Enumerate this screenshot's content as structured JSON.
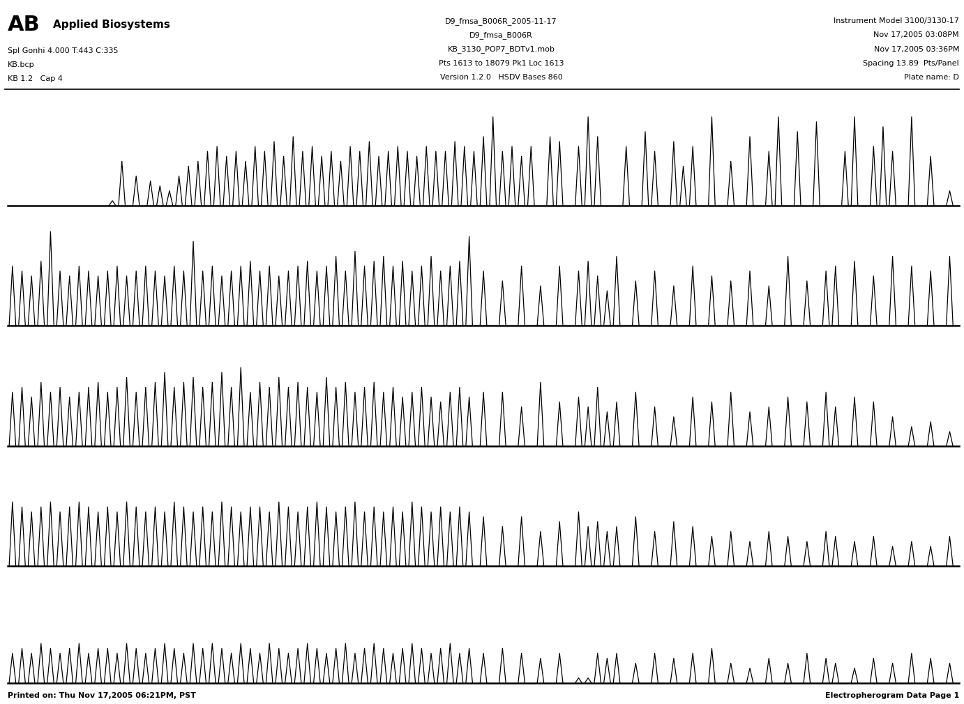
{
  "header": {
    "logo": "AB",
    "company": "Applied Biosystems",
    "left": [
      "Spl Gonhi 4.000 T:443 C:335",
      "KB.bcp",
      "KB 1.2   Cap 4"
    ],
    "center": [
      "D9_fmsa_B006R_2005-11-17",
      "D9_fmsa_B006R",
      "KB_3130_POP7_BDTv1.mob",
      "Pts 1613 to 18079 Pk1 Loc 1613",
      "Version 1.2.0   HSDV Bases 860"
    ],
    "right": [
      "Instrument Model 3100/3130-17",
      "Nov 17,2005 03:08PM",
      "Nov 17,2005 03:36PM",
      "Spacing 13.89  Pts/Panel",
      "Plate name: D"
    ]
  },
  "footer": {
    "left": "Printed on: Thu Nov 17,2005 06:21PM, PST",
    "right": "Electropherogram Data Page 1"
  },
  "chart_data": [
    {
      "type": "line",
      "color": "#000000",
      "xlim": [
        0,
        100
      ],
      "ylim": [
        0,
        100
      ],
      "tick_labels": false,
      "x": [
        11,
        12,
        13.5,
        15,
        16,
        17,
        18,
        19,
        20,
        21,
        22,
        23,
        24,
        25,
        26,
        27,
        28,
        29,
        30,
        31,
        32,
        33,
        34,
        35,
        36,
        37,
        38,
        39,
        40,
        41,
        42,
        43,
        44,
        45,
        46,
        47,
        48,
        49,
        50,
        51,
        52,
        53,
        54,
        55,
        57,
        58,
        60,
        61,
        62,
        65,
        67,
        68,
        70,
        71,
        72,
        74,
        76,
        78,
        80,
        81,
        83,
        85,
        88,
        89,
        91,
        92,
        93,
        95,
        97,
        99
      ],
      "values": [
        5,
        45,
        30,
        25,
        20,
        15,
        30,
        40,
        45,
        55,
        60,
        50,
        55,
        45,
        60,
        55,
        65,
        50,
        70,
        55,
        60,
        50,
        55,
        45,
        60,
        55,
        65,
        50,
        55,
        60,
        55,
        50,
        60,
        55,
        55,
        65,
        60,
        55,
        70,
        90,
        55,
        60,
        50,
        60,
        70,
        65,
        60,
        90,
        70,
        60,
        75,
        55,
        65,
        40,
        60,
        90,
        45,
        70,
        55,
        90,
        75,
        85,
        55,
        90,
        60,
        80,
        55,
        90,
        50,
        15
      ]
    },
    {
      "type": "line",
      "color": "#000000",
      "xlim": [
        0,
        100
      ],
      "ylim": [
        0,
        100
      ],
      "tick_labels": false,
      "x": [
        0.5,
        1.5,
        2.5,
        3.5,
        4.5,
        5.5,
        6.5,
        7.5,
        8.5,
        9.5,
        10.5,
        11.5,
        12.5,
        13.5,
        14.5,
        15.5,
        16.5,
        17.5,
        18.5,
        19.5,
        20.5,
        21.5,
        22.5,
        23.5,
        24.5,
        25.5,
        26.5,
        27.5,
        28.5,
        29.5,
        30.5,
        31.5,
        32.5,
        33.5,
        34.5,
        35.5,
        36.5,
        37.5,
        38.5,
        39.5,
        40.5,
        41.5,
        42.5,
        43.5,
        44.5,
        45.5,
        46.5,
        47.5,
        48.5,
        50,
        52,
        54,
        56,
        58,
        60,
        61,
        62,
        63,
        64,
        66,
        68,
        70,
        72,
        74,
        76,
        78,
        80,
        82,
        84,
        86,
        87,
        89,
        91,
        93,
        95,
        97,
        99
      ],
      "values": [
        60,
        55,
        50,
        65,
        95,
        55,
        50,
        60,
        55,
        50,
        55,
        60,
        50,
        55,
        60,
        55,
        50,
        60,
        55,
        85,
        55,
        60,
        50,
        55,
        60,
        65,
        55,
        60,
        50,
        55,
        60,
        65,
        55,
        60,
        70,
        55,
        75,
        60,
        65,
        70,
        60,
        65,
        55,
        60,
        70,
        55,
        60,
        65,
        90,
        55,
        45,
        60,
        40,
        60,
        55,
        65,
        50,
        35,
        70,
        45,
        55,
        40,
        60,
        50,
        45,
        55,
        40,
        70,
        45,
        55,
        60,
        65,
        50,
        70,
        60,
        55,
        70
      ]
    },
    {
      "type": "line",
      "color": "#000000",
      "xlim": [
        0,
        100
      ],
      "ylim": [
        0,
        100
      ],
      "tick_labels": false,
      "x": [
        0.5,
        1.5,
        2.5,
        3.5,
        4.5,
        5.5,
        6.5,
        7.5,
        8.5,
        9.5,
        10.5,
        11.5,
        12.5,
        13.5,
        14.5,
        15.5,
        16.5,
        17.5,
        18.5,
        19.5,
        20.5,
        21.5,
        22.5,
        23.5,
        24.5,
        25.5,
        26.5,
        27.5,
        28.5,
        29.5,
        30.5,
        31.5,
        32.5,
        33.5,
        34.5,
        35.5,
        36.5,
        37.5,
        38.5,
        39.5,
        40.5,
        41.5,
        42.5,
        43.5,
        44.5,
        45.5,
        46.5,
        47.5,
        48.5,
        50,
        52,
        54,
        56,
        58,
        60,
        61,
        62,
        63,
        64,
        66,
        68,
        70,
        72,
        74,
        76,
        78,
        80,
        82,
        84,
        86,
        87,
        89,
        91,
        93,
        95,
        97,
        99
      ],
      "values": [
        55,
        60,
        50,
        65,
        55,
        60,
        50,
        55,
        60,
        65,
        55,
        60,
        70,
        55,
        60,
        65,
        75,
        60,
        65,
        70,
        60,
        65,
        75,
        60,
        80,
        55,
        65,
        60,
        70,
        60,
        65,
        60,
        55,
        70,
        60,
        65,
        55,
        60,
        65,
        55,
        60,
        50,
        55,
        60,
        50,
        45,
        55,
        60,
        50,
        55,
        55,
        40,
        65,
        45,
        50,
        40,
        60,
        35,
        45,
        55,
        40,
        30,
        50,
        45,
        55,
        35,
        40,
        50,
        45,
        55,
        40,
        50,
        45,
        30,
        20,
        25,
        15
      ]
    },
    {
      "type": "line",
      "color": "#000000",
      "xlim": [
        0,
        100
      ],
      "ylim": [
        0,
        100
      ],
      "tick_labels": false,
      "x": [
        0.5,
        1.5,
        2.5,
        3.5,
        4.5,
        5.5,
        6.5,
        7.5,
        8.5,
        9.5,
        10.5,
        11.5,
        12.5,
        13.5,
        14.5,
        15.5,
        16.5,
        17.5,
        18.5,
        19.5,
        20.5,
        21.5,
        22.5,
        23.5,
        24.5,
        25.5,
        26.5,
        27.5,
        28.5,
        29.5,
        30.5,
        31.5,
        32.5,
        33.5,
        34.5,
        35.5,
        36.5,
        37.5,
        38.5,
        39.5,
        40.5,
        41.5,
        42.5,
        43.5,
        44.5,
        45.5,
        46.5,
        47.5,
        48.5,
        50,
        52,
        54,
        56,
        58,
        60,
        61,
        62,
        63,
        64,
        66,
        68,
        70,
        72,
        74,
        76,
        78,
        80,
        82,
        84,
        86,
        87,
        89,
        91,
        93,
        95,
        97,
        99
      ],
      "values": [
        65,
        60,
        55,
        60,
        65,
        55,
        60,
        65,
        60,
        55,
        60,
        55,
        65,
        60,
        55,
        60,
        55,
        65,
        60,
        55,
        60,
        55,
        65,
        60,
        55,
        60,
        60,
        55,
        65,
        60,
        55,
        60,
        65,
        60,
        55,
        60,
        65,
        55,
        60,
        55,
        60,
        55,
        65,
        60,
        55,
        60,
        55,
        60,
        55,
        50,
        40,
        50,
        35,
        45,
        55,
        40,
        45,
        35,
        40,
        50,
        35,
        45,
        40,
        30,
        35,
        25,
        35,
        30,
        25,
        35,
        30,
        25,
        30,
        20,
        25,
        20,
        30
      ]
    },
    {
      "type": "line",
      "color": "#000000",
      "xlim": [
        0,
        100
      ],
      "ylim": [
        0,
        100
      ],
      "tick_labels": false,
      "x": [
        0.5,
        1.5,
        2.5,
        3.5,
        4.5,
        5.5,
        6.5,
        7.5,
        8.5,
        9.5,
        10.5,
        11.5,
        12.5,
        13.5,
        14.5,
        15.5,
        16.5,
        17.5,
        18.5,
        19.5,
        20.5,
        21.5,
        22.5,
        23.5,
        24.5,
        25.5,
        26.5,
        27.5,
        28.5,
        29.5,
        30.5,
        31.5,
        32.5,
        33.5,
        34.5,
        35.5,
        36.5,
        37.5,
        38.5,
        39.5,
        40.5,
        41.5,
        42.5,
        43.5,
        44.5,
        45.5,
        46.5,
        47.5,
        48.5,
        50,
        52,
        54,
        56,
        58,
        60,
        61,
        62,
        63,
        64,
        66,
        68,
        70,
        72,
        74,
        76,
        78,
        80,
        82,
        84,
        86,
        87,
        89,
        91,
        93,
        95,
        97,
        99
      ],
      "values": [
        30,
        35,
        30,
        40,
        35,
        30,
        35,
        40,
        30,
        35,
        35,
        30,
        40,
        35,
        30,
        35,
        40,
        35,
        30,
        40,
        35,
        40,
        35,
        30,
        40,
        35,
        30,
        40,
        35,
        30,
        35,
        40,
        35,
        30,
        35,
        40,
        30,
        35,
        40,
        35,
        30,
        35,
        40,
        35,
        30,
        35,
        40,
        30,
        35,
        30,
        35,
        30,
        25,
        30,
        5,
        5,
        30,
        25,
        30,
        20,
        30,
        25,
        30,
        35,
        20,
        15,
        25,
        20,
        30,
        25,
        20,
        15,
        25,
        20,
        30,
        25,
        20
      ]
    }
  ]
}
